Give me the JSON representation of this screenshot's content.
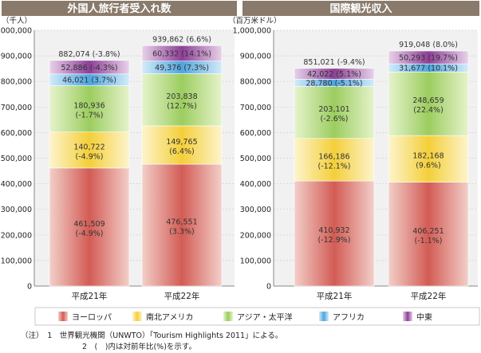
{
  "chart_data": [
    {
      "type": "bar",
      "stacked": true,
      "title": "外国人旅行者受入れ数",
      "unit_label": "（千人）",
      "categories": [
        "平成21年",
        "平成22年"
      ],
      "ylim": [
        0,
        1000000
      ],
      "yticks": [
        "0",
        "100,000",
        "200,000",
        "300,000",
        "400,000",
        "500,000",
        "600,000",
        "700,000",
        "800,000",
        "900,000",
        "1,000,000"
      ],
      "total_labels": [
        "882,074 (-3.8%)",
        "939,862 (6.6%)"
      ],
      "series": [
        {
          "name": "ヨーロッパ",
          "values": [
            461509,
            476551
          ],
          "labels": [
            "461,509",
            "476,551"
          ],
          "changes": [
            "(-4.9%)",
            "(3.3%)"
          ]
        },
        {
          "name": "南北アメリカ",
          "values": [
            140722,
            149765
          ],
          "labels": [
            "140,722",
            "149,765"
          ],
          "changes": [
            "(-4.9%)",
            "(6.4%)"
          ]
        },
        {
          "name": "アジア・太平洋",
          "values": [
            180936,
            203838
          ],
          "labels": [
            "180,936",
            "203,838"
          ],
          "changes": [
            "(-1.7%)",
            "(12.7%)"
          ]
        },
        {
          "name": "アフリカ",
          "values": [
            46021,
            49376
          ],
          "labels": [
            "46,021 (3.7%)",
            "49,376 (7.3%)"
          ]
        },
        {
          "name": "中東",
          "values": [
            52886,
            60332
          ],
          "labels": [
            "52,886 (-4.3%)",
            "60,332 (14.1%)"
          ]
        }
      ]
    },
    {
      "type": "bar",
      "stacked": true,
      "title": "国際観光収入",
      "unit_label": "（百万米ドル）",
      "categories": [
        "平成21年",
        "平成22年"
      ],
      "ylim": [
        0,
        1000000
      ],
      "yticks": [
        "0",
        "100,000",
        "200,000",
        "300,000",
        "400,000",
        "500,000",
        "600,000",
        "700,000",
        "800,000",
        "900,000",
        "1,000,000"
      ],
      "total_labels": [
        "851,021 (-9.4%)",
        "919,048 (8.0%)"
      ],
      "series": [
        {
          "name": "ヨーロッパ",
          "values": [
            410932,
            406251
          ],
          "labels": [
            "410,932",
            "406,251"
          ],
          "changes": [
            "(-12.9%)",
            "(-1.1%)"
          ]
        },
        {
          "name": "南北アメリカ",
          "values": [
            166186,
            182168
          ],
          "labels": [
            "166,186",
            "182,168"
          ],
          "changes": [
            "(-12.1%)",
            "(9.6%)"
          ]
        },
        {
          "name": "アジア・太平洋",
          "values": [
            203101,
            248659
          ],
          "labels": [
            "203,101",
            "248,659"
          ],
          "changes": [
            "(-2.6%)",
            "(22.4%)"
          ]
        },
        {
          "name": "アフリカ",
          "values": [
            28780,
            31677
          ],
          "labels": [
            "28,780 (-5.1%)",
            "31,677 (10.1%)"
          ]
        },
        {
          "name": "中東",
          "values": [
            42022,
            50293
          ],
          "labels": [
            "42,022 (5.1%)",
            "50,293 (19.7%)"
          ]
        }
      ]
    }
  ],
  "legend": [
    "ヨーロッパ",
    "南北アメリカ",
    "アジア・太平洋",
    "アフリカ",
    "中東"
  ],
  "colors": {
    "header": "#8a7a6b",
    "panel": "#f1f1f1",
    "grid": "#cfcfcf",
    "series": [
      [
        "#f3cfc9",
        "#d25c55"
      ],
      [
        "#fdf4cc",
        "#f4cf3a"
      ],
      [
        "#e6f3cc",
        "#9ccd5f"
      ],
      [
        "#d3ebf9",
        "#4ea6e0"
      ],
      [
        "#e8d2ea",
        "#8e3f97"
      ]
    ]
  },
  "notes": [
    "（注）　1　世界観光機関（UNWTO）「Tourism Highlights 2011」による。",
    "2　(　)内は対前年比(%)を示す。"
  ]
}
